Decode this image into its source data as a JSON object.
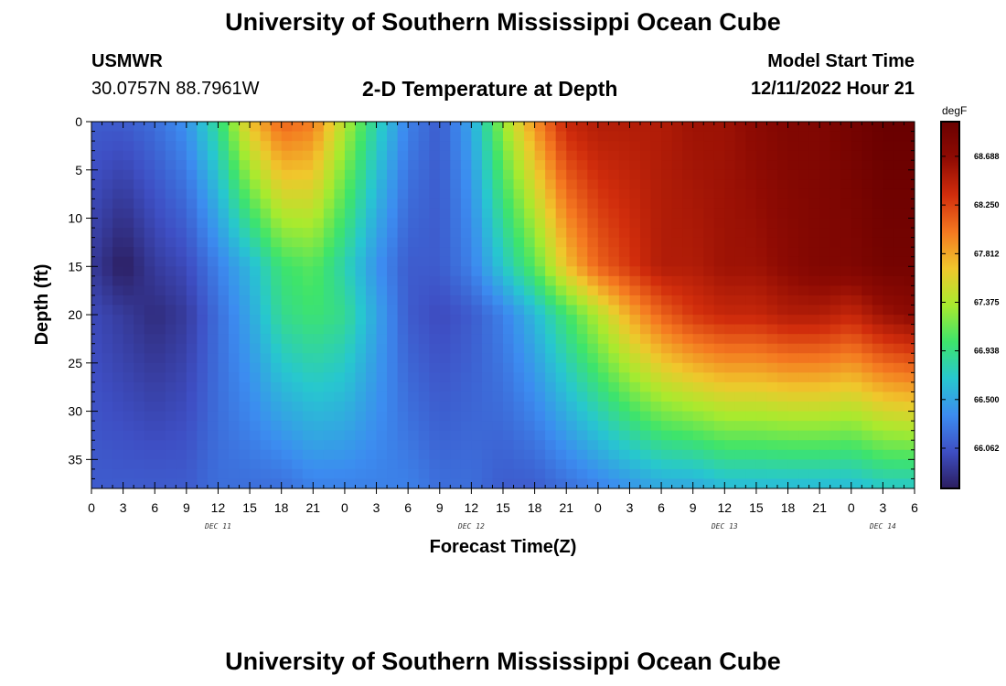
{
  "header": {
    "title": "University of Southern Mississippi Ocean Cube",
    "station": "USMWR",
    "coordinates": "30.0757N  88.7961W",
    "model_start_label": "Model Start Time",
    "model_start_value": "12/11/2022 Hour 21"
  },
  "footer": {
    "title": "University of Southern Mississippi Ocean Cube"
  },
  "chart_data": {
    "type": "heatmap",
    "title": "2-D Temperature at Depth",
    "xlabel": "Forecast Time(Z)",
    "ylabel": "Depth (ft)",
    "x_hours_range": [
      0,
      78
    ],
    "x_tick_labels": [
      "0",
      "3",
      "6",
      "9",
      "12",
      "15",
      "18",
      "21",
      "0",
      "3",
      "6",
      "9",
      "12",
      "15",
      "18",
      "21",
      "0",
      "3",
      "6",
      "9",
      "12",
      "15",
      "18",
      "21",
      "0",
      "3",
      "6"
    ],
    "day_labels": [
      {
        "label": "DEC 11",
        "hour": 12
      },
      {
        "label": "DEC 12",
        "hour": 36
      },
      {
        "label": "DEC 13",
        "hour": 60
      },
      {
        "label": "DEC 14",
        "hour": 75
      }
    ],
    "y_range_ft": [
      0,
      38
    ],
    "y_ticks": [
      "0",
      "5",
      "10",
      "15",
      "20",
      "25",
      "30",
      "35"
    ],
    "colorbar": {
      "unit": "degF",
      "min": 65.7,
      "max": 69.0,
      "tick_labels": [
        "68.688",
        "68.250",
        "67.812",
        "67.375",
        "66.938",
        "66.500",
        "66.062"
      ],
      "colors": [
        "#2b1d5e",
        "#3e4fc4",
        "#3c8cf0",
        "#27c7cf",
        "#3ee46b",
        "#a9ea2e",
        "#f0c72c",
        "#f47820",
        "#d12d0c",
        "#8f0b03",
        "#6a0000"
      ]
    },
    "grid_resolution": {
      "time_steps": 78,
      "depth_levels": 38
    },
    "approx_temperatures_degF": [
      {
        "depth_ft": 0,
        "hours": [
          0,
          3,
          6,
          9,
          12,
          15,
          18,
          21,
          24,
          27,
          30,
          33,
          36,
          39,
          42,
          45,
          48,
          51,
          54,
          57,
          60,
          63,
          66,
          69,
          72,
          75,
          78
        ],
        "values": [
          66.1,
          66.1,
          66.2,
          66.4,
          66.9,
          67.7,
          68.1,
          68.0,
          67.4,
          66.8,
          66.3,
          66.1,
          66.5,
          67.3,
          67.9,
          68.4,
          68.5,
          68.5,
          68.5,
          68.6,
          68.6,
          68.7,
          68.8,
          68.8,
          68.9,
          69.0,
          69.0
        ]
      },
      {
        "depth_ft": 15,
        "hours": [
          0,
          3,
          6,
          9,
          12,
          15,
          18,
          21,
          24,
          27,
          30,
          33,
          36,
          39,
          42,
          45,
          48,
          51,
          54,
          57,
          60,
          63,
          66,
          69,
          72,
          75,
          78
        ],
        "values": [
          65.9,
          65.7,
          65.9,
          66.0,
          66.3,
          66.6,
          67.0,
          67.1,
          66.8,
          66.4,
          66.1,
          66.1,
          66.3,
          66.7,
          67.1,
          67.7,
          68.1,
          68.3,
          68.5,
          68.5,
          68.6,
          68.6,
          68.7,
          68.8,
          68.8,
          68.9,
          68.9
        ]
      },
      {
        "depth_ft": 20,
        "hours": [
          0,
          3,
          6,
          9,
          12,
          15,
          18,
          21,
          24,
          27,
          30,
          33,
          36,
          39,
          42,
          45,
          48,
          51,
          54,
          57,
          60,
          63,
          66,
          69,
          72,
          75,
          78
        ],
        "values": [
          66.0,
          65.9,
          65.8,
          65.9,
          66.2,
          66.5,
          66.9,
          67.0,
          66.9,
          66.5,
          66.1,
          66.0,
          66.1,
          66.3,
          66.6,
          67.0,
          67.4,
          67.8,
          68.1,
          68.3,
          68.4,
          68.4,
          68.5,
          68.5,
          68.4,
          68.6,
          68.7
        ]
      },
      {
        "depth_ft": 38,
        "hours": [
          0,
          3,
          6,
          9,
          12,
          15,
          18,
          21,
          24,
          27,
          30,
          33,
          36,
          39,
          42,
          45,
          48,
          51,
          54,
          57,
          60,
          63,
          66,
          69,
          72,
          75,
          78
        ],
        "values": [
          66.1,
          66.1,
          66.1,
          66.1,
          66.2,
          66.2,
          66.2,
          66.3,
          66.3,
          66.3,
          66.3,
          66.2,
          66.2,
          66.1,
          66.1,
          66.2,
          66.3,
          66.4,
          66.5,
          66.5,
          66.6,
          66.6,
          66.6,
          66.6,
          66.6,
          66.7,
          66.7
        ]
      }
    ]
  }
}
